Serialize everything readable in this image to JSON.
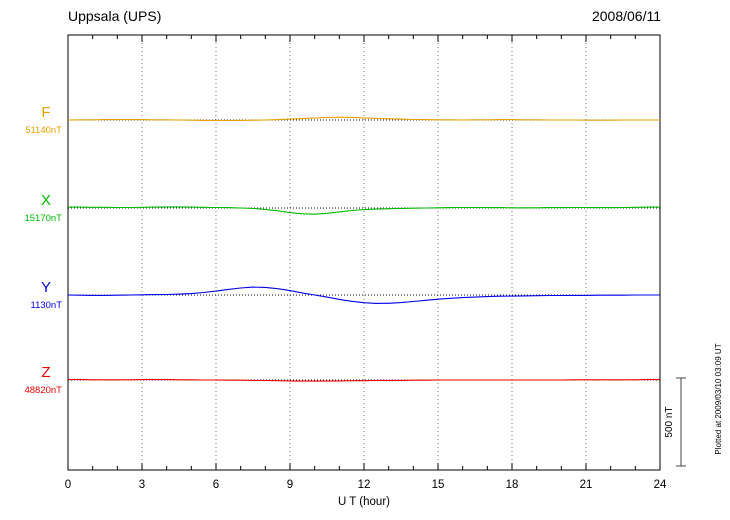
{
  "header": {
    "station": "Uppsala (UPS)",
    "date": "2008/06/11"
  },
  "scale_bar": {
    "label": "500 nT",
    "nT": 500
  },
  "side_note": "Plotted at 2009/03/10 03:09 UT",
  "chart_data": {
    "type": "line",
    "title": "Uppsala (UPS) magnetogram 2008/06/11",
    "xlabel": "U T (hour)",
    "x_range": [
      0,
      24
    ],
    "x_ticks": [
      0,
      3,
      6,
      9,
      12,
      15,
      18,
      21,
      24
    ],
    "x_step_hours": 0.5,
    "scale_bar_nT": 500,
    "grid": "dotted-vertical-every-3h",
    "legend_position": "left-of-traces",
    "series": [
      {
        "name": "F",
        "baseline_nT": 51140,
        "baseline_label": "51140nT",
        "color": "#e8a000",
        "deviation_nT": [
          0,
          1,
          1,
          2,
          2,
          2,
          2,
          1,
          1,
          0,
          -1,
          -2,
          -3,
          -3,
          -2,
          -1,
          0,
          2,
          5,
          8,
          11,
          14,
          16,
          15,
          12,
          9,
          7,
          5,
          3,
          2,
          1,
          1,
          0,
          1,
          1,
          2,
          2,
          1,
          1,
          0,
          0,
          0,
          -1,
          -1,
          -1,
          0,
          0,
          0,
          0
        ]
      },
      {
        "name": "X",
        "baseline_nT": 15170,
        "baseline_label": "15170nT",
        "color": "#00bb00",
        "deviation_nT": [
          5,
          5,
          4,
          4,
          3,
          3,
          4,
          5,
          6,
          6,
          5,
          4,
          3,
          2,
          0,
          -3,
          -8,
          -16,
          -26,
          -33,
          -35,
          -30,
          -22,
          -14,
          -9,
          -6,
          -4,
          -2,
          -1,
          0,
          1,
          2,
          3,
          3,
          2,
          2,
          1,
          1,
          1,
          2,
          2,
          3,
          3,
          2,
          2,
          3,
          4,
          5,
          5
        ]
      },
      {
        "name": "Y",
        "baseline_nT": 1130,
        "baseline_label": "1130nT",
        "color": "#0000ee",
        "deviation_nT": [
          0,
          -1,
          -2,
          -2,
          -1,
          0,
          1,
          2,
          3,
          5,
          8,
          14,
          22,
          32,
          40,
          45,
          43,
          36,
          25,
          12,
          0,
          -12,
          -25,
          -36,
          -44,
          -48,
          -47,
          -43,
          -37,
          -30,
          -24,
          -19,
          -15,
          -12,
          -9,
          -7,
          -6,
          -5,
          -4,
          -3,
          -3,
          -2,
          -2,
          -1,
          -1,
          -1,
          0,
          0,
          0
        ]
      },
      {
        "name": "Z",
        "baseline_nT": 48820,
        "baseline_label": "48820nT",
        "color": "#ee0000",
        "deviation_nT": [
          2,
          2,
          1,
          1,
          1,
          1,
          2,
          2,
          2,
          1,
          1,
          0,
          0,
          -1,
          -1,
          -2,
          -3,
          -4,
          -5,
          -6,
          -6,
          -6,
          -5,
          -4,
          -4,
          -3,
          -2,
          -2,
          -1,
          -1,
          0,
          0,
          0,
          0,
          0,
          0,
          0,
          0,
          0,
          0,
          0,
          1,
          1,
          1,
          1,
          1,
          1,
          2,
          2
        ]
      }
    ]
  }
}
